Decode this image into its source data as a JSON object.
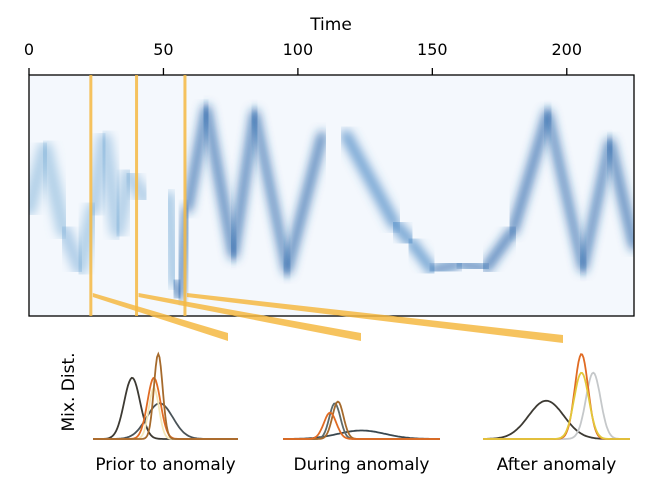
{
  "chart_data": [
    {
      "type": "heatmap",
      "title": "",
      "xlabel": "Time",
      "ylabel": "",
      "xlim": [
        0,
        225
      ],
      "xticks": [
        0,
        50,
        100,
        150,
        200
      ],
      "colormap": "Blues",
      "trace": [
        {
          "t": 0,
          "v": 0.45,
          "w": 0.35
        },
        {
          "t": 6,
          "v": 0.72,
          "w": 0.35
        },
        {
          "t": 13,
          "v": 0.35,
          "w": 0.35
        },
        {
          "t": 19,
          "v": 0.18,
          "w": 0.4
        },
        {
          "t": 24,
          "v": 0.45,
          "w": 0.3
        },
        {
          "t": 28,
          "v": 0.76,
          "w": 0.35
        },
        {
          "t": 33,
          "v": 0.35,
          "w": 0.3
        },
        {
          "t": 37,
          "v": 0.6,
          "w": 0.3
        },
        {
          "t": 43,
          "v": 0.5,
          "w": 0.2
        },
        {
          "t": 52,
          "v": 0.5,
          "w": 0.2
        },
        {
          "t": 54,
          "v": 0.12,
          "w": 0.8
        },
        {
          "t": 56,
          "v": 0.05,
          "w": 1.0
        },
        {
          "t": 59,
          "v": 0.45,
          "w": 0.8
        },
        {
          "t": 66,
          "v": 0.9,
          "w": 0.9
        },
        {
          "t": 76,
          "v": 0.24,
          "w": 0.8
        },
        {
          "t": 84,
          "v": 0.88,
          "w": 0.9
        },
        {
          "t": 96,
          "v": 0.17,
          "w": 0.95
        },
        {
          "t": 109,
          "v": 0.78,
          "w": 0.7
        },
        {
          "t": 118,
          "v": 0.78,
          "w": 0.6
        },
        {
          "t": 136,
          "v": 0.38,
          "w": 0.6
        },
        {
          "t": 142,
          "v": 0.3,
          "w": 0.6
        },
        {
          "t": 150,
          "v": 0.17,
          "w": 0.9
        },
        {
          "t": 160,
          "v": 0.2,
          "w": 0.9
        },
        {
          "t": 170,
          "v": 0.18,
          "w": 0.9
        },
        {
          "t": 180,
          "v": 0.35,
          "w": 0.7
        },
        {
          "t": 193,
          "v": 0.88,
          "w": 0.9
        },
        {
          "t": 206,
          "v": 0.18,
          "w": 0.95
        },
        {
          "t": 216,
          "v": 0.75,
          "w": 0.85
        },
        {
          "t": 225,
          "v": 0.28,
          "w": 0.8
        }
      ],
      "markers": [
        {
          "t": 23,
          "label": "Prior to anomaly"
        },
        {
          "t": 40,
          "label": "During anomaly"
        },
        {
          "t": 58,
          "label": "After anomaly"
        }
      ],
      "marker_color": "#f5b942"
    },
    {
      "type": "line",
      "ylabel": "Mix. Dist.",
      "panels": [
        {
          "label": "Prior to anomaly",
          "components": [
            {
              "mean": 0.27,
              "sd": 0.055,
              "height": 0.72,
              "color": "#3d3a33"
            },
            {
              "mean": 0.46,
              "sd": 0.09,
              "height": 0.42,
              "color": "#4a5358"
            },
            {
              "mean": 0.42,
              "sd": 0.035,
              "height": 0.6,
              "color": "#f4e7b8"
            },
            {
              "mean": 0.42,
              "sd": 0.045,
              "height": 0.72,
              "color": "#e06b23"
            },
            {
              "mean": 0.45,
              "sd": 0.03,
              "height": 1.0,
              "color": "#a66a2c"
            }
          ]
        },
        {
          "label": "During anomaly",
          "components": [
            {
              "mean": 0.5,
              "sd": 0.15,
              "height": 0.1,
              "color": "#3a4850"
            },
            {
              "mean": 0.33,
              "sd": 0.035,
              "height": 0.42,
              "color": "#5d6a6a"
            },
            {
              "mean": 0.35,
              "sd": 0.035,
              "height": 0.44,
              "color": "#a66a2c"
            },
            {
              "mean": 0.3,
              "sd": 0.04,
              "height": 0.31,
              "color": "#e06b23"
            }
          ]
        },
        {
          "label": "After anomaly",
          "components": [
            {
              "mean": 0.43,
              "sd": 0.12,
              "height": 0.45,
              "color": "#3d3a33"
            },
            {
              "mean": 0.75,
              "sd": 0.05,
              "height": 0.78,
              "color": "#c5c8ca"
            },
            {
              "mean": 0.67,
              "sd": 0.045,
              "height": 1.0,
              "color": "#e06b23"
            },
            {
              "mean": 0.67,
              "sd": 0.05,
              "height": 0.78,
              "color": "#e3c73a"
            }
          ]
        }
      ]
    }
  ]
}
